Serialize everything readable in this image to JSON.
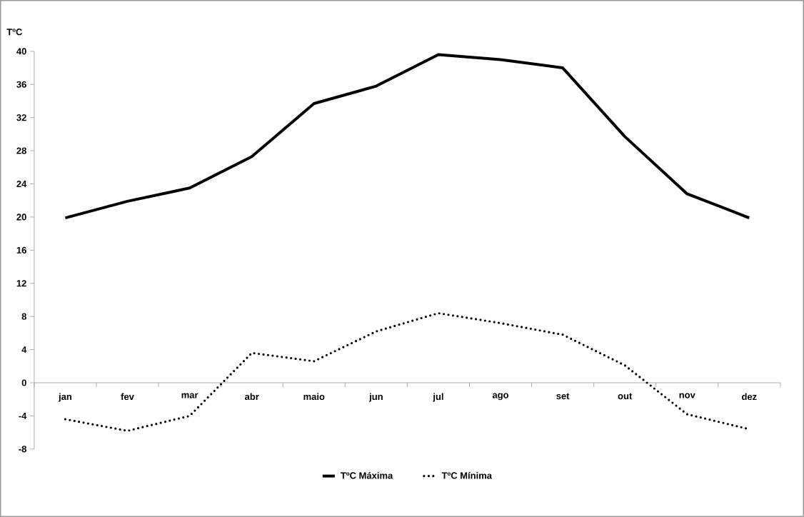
{
  "chart_data": {
    "type": "line",
    "ylabel": "TºC",
    "categories": [
      "jan",
      "fev",
      "mar",
      "abr",
      "maio",
      "jun",
      "jul",
      "ago",
      "set",
      "out",
      "nov",
      "dez"
    ],
    "series": [
      {
        "name": "TºC Máxima",
        "color": "#000000",
        "line_style": "solid",
        "values": [
          19.9,
          21.9,
          23.5,
          27.3,
          33.7,
          35.8,
          39.6,
          39.0,
          38.0,
          29.7,
          22.8,
          19.9
        ]
      },
      {
        "name": "TºC Mínima",
        "color": "#000000",
        "line_style": "dotted",
        "values": [
          -4.4,
          -5.8,
          -4.0,
          3.6,
          2.6,
          6.2,
          8.4,
          7.2,
          5.8,
          2.1,
          -3.8,
          -5.6
        ]
      }
    ],
    "ylim": [
      -8,
      40
    ],
    "yticks": [
      -8,
      -4,
      0,
      4,
      8,
      12,
      16,
      20,
      24,
      28,
      32,
      36,
      40
    ],
    "grid": false,
    "legend": "bottom"
  }
}
